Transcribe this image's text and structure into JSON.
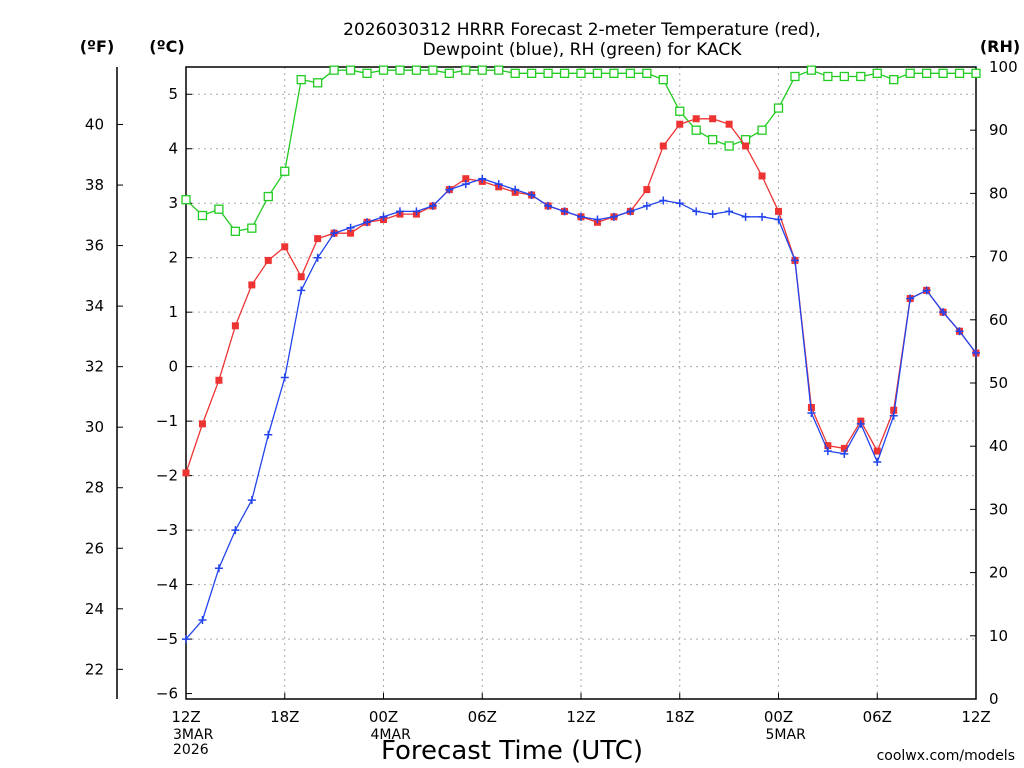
{
  "title_lines": [
    "2026030312 HRRR Forecast 2-meter Temperature (red),",
    "Dewpoint (blue), RH (green) for KACK"
  ],
  "unit_labels": {
    "fahrenheit": "(ºF)",
    "celsius": "(ºC)",
    "rh": "(RH)"
  },
  "xlabel": "Forecast Time (UTC)",
  "credit": "coolwx.com/models",
  "x_ticks": [
    {
      "h": 0,
      "label": "12Z",
      "sub": [
        "3MAR",
        "2026"
      ]
    },
    {
      "h": 6,
      "label": "18Z",
      "sub": []
    },
    {
      "h": 12,
      "label": "00Z",
      "sub": [
        "4MAR"
      ]
    },
    {
      "h": 18,
      "label": "06Z",
      "sub": []
    },
    {
      "h": 24,
      "label": "12Z",
      "sub": []
    },
    {
      "h": 30,
      "label": "18Z",
      "sub": []
    },
    {
      "h": 36,
      "label": "00Z",
      "sub": [
        "5MAR"
      ]
    },
    {
      "h": 42,
      "label": "06Z",
      "sub": []
    },
    {
      "h": 48,
      "label": "12Z",
      "sub": []
    }
  ],
  "colors": {
    "temperature": "#ee3333",
    "dewpoint": "#2244ee",
    "rh": "#22cc22",
    "credit": "#dd2222",
    "grid": "#aaaaaa"
  },
  "chart_data": {
    "type": "line",
    "title": "2026030312 HRRR Forecast 2-meter Temperature (red), Dewpoint (blue), RH (green) for KACK",
    "xlabel": "Forecast Time (UTC)",
    "x_unit": "forecast hour from 2026-03-03 12Z",
    "xlim": [
      0,
      48
    ],
    "ylim_celsius": [
      -6.1,
      5.5
    ],
    "ylim_rh": [
      0,
      100
    ],
    "y_ticks_celsius": [
      -6,
      -5,
      -4,
      -3,
      -2,
      -1,
      0,
      1,
      2,
      3,
      4,
      5
    ],
    "y_ticks_fahrenheit": [
      22,
      24,
      26,
      28,
      30,
      32,
      34,
      36,
      38,
      40
    ],
    "y_ticks_rh": [
      0,
      10,
      20,
      30,
      40,
      50,
      60,
      70,
      80,
      90,
      100
    ],
    "grid": true,
    "x": [
      0,
      1,
      2,
      3,
      4,
      5,
      6,
      7,
      8,
      9,
      10,
      11,
      12,
      13,
      14,
      15,
      16,
      17,
      18,
      19,
      20,
      21,
      22,
      23,
      24,
      25,
      26,
      27,
      28,
      29,
      30,
      31,
      32,
      33,
      34,
      35,
      36,
      37,
      38,
      39,
      40,
      41,
      42,
      43,
      44,
      45,
      46,
      47,
      48
    ],
    "series": [
      {
        "name": "Temperature",
        "axis": "celsius",
        "marker": "filled-square",
        "values": [
          -1.95,
          -1.05,
          -0.25,
          0.75,
          1.5,
          1.95,
          2.2,
          1.65,
          2.35,
          2.45,
          2.45,
          2.65,
          2.7,
          2.8,
          2.8,
          2.95,
          3.25,
          3.45,
          3.4,
          3.3,
          3.2,
          3.15,
          2.95,
          2.85,
          2.75,
          2.65,
          2.75,
          2.85,
          3.25,
          4.05,
          4.45,
          4.55,
          4.55,
          4.45,
          4.05,
          3.5,
          2.85,
          1.95,
          -0.75,
          -1.45,
          -1.5,
          -1.0,
          -1.55,
          -0.8,
          1.25,
          1.4,
          1.0,
          0.65,
          0.25
        ]
      },
      {
        "name": "Dewpoint",
        "axis": "celsius",
        "marker": "plus",
        "values": [
          -5.0,
          -4.65,
          -3.7,
          -3.0,
          -2.45,
          -1.25,
          -0.2,
          1.4,
          2.0,
          2.45,
          2.55,
          2.65,
          2.75,
          2.85,
          2.85,
          2.95,
          3.25,
          3.35,
          3.45,
          3.35,
          3.25,
          3.15,
          2.95,
          2.85,
          2.75,
          2.7,
          2.75,
          2.85,
          2.95,
          3.05,
          3.0,
          2.85,
          2.8,
          2.85,
          2.75,
          2.75,
          2.7,
          1.95,
          -0.85,
          -1.55,
          -1.6,
          -1.05,
          -1.75,
          -0.9,
          1.25,
          1.4,
          1.0,
          0.65,
          0.25
        ]
      },
      {
        "name": "RH",
        "axis": "rh",
        "marker": "open-square",
        "values": [
          79,
          76.5,
          77.5,
          74,
          74.5,
          79.5,
          83.5,
          98,
          97.5,
          99.5,
          99.5,
          99,
          99.5,
          99.5,
          99.5,
          99.5,
          99,
          99.5,
          99.5,
          99.5,
          99,
          99,
          99,
          99,
          99,
          99,
          99,
          99,
          99,
          98,
          93,
          90,
          88.5,
          87.5,
          88.5,
          90,
          93.5,
          98.5,
          99.5,
          98.5,
          98.5,
          98.5,
          99,
          98,
          99,
          99,
          99,
          99,
          99
        ]
      }
    ]
  }
}
